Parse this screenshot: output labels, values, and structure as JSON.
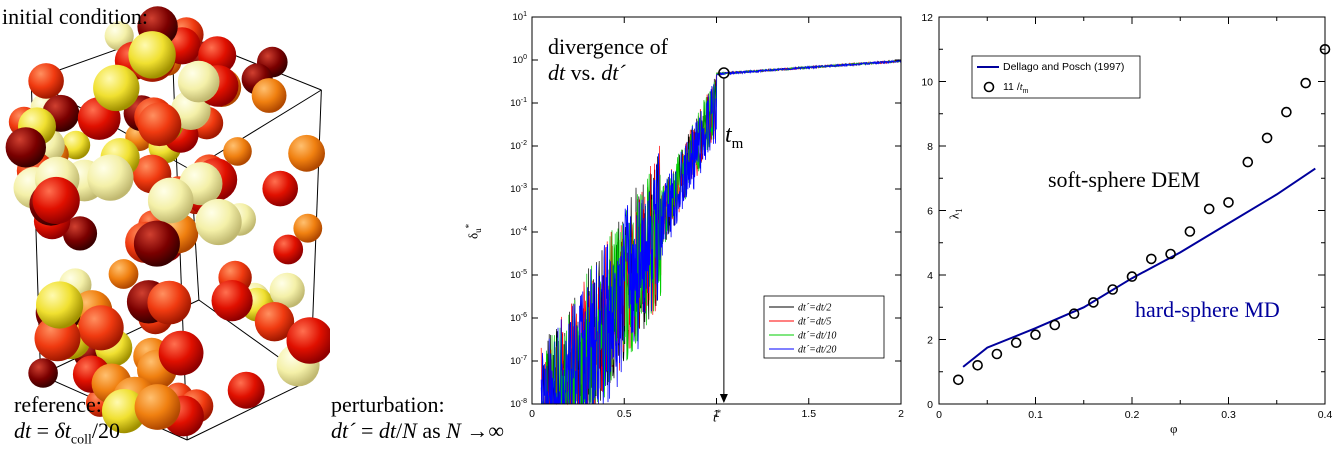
{
  "left_panel": {
    "caption_top": "initial condition:",
    "reference_line1": "reference:",
    "reference_dt": "dt",
    "reference_eq": " = ",
    "reference_delta": "δt",
    "reference_sub": "coll",
    "reference_tail": "/20",
    "perturb_line1": "perturbation:",
    "perturb_dt": "dt´",
    "perturb_eq": " = ",
    "perturb_dt2": "dt",
    "perturb_slash": "/",
    "perturb_N": "N",
    "perturb_as": " as ",
    "perturb_N2": "N",
    "perturb_arrow": " →∞",
    "colors": [
      "#c80000",
      "#e03000",
      "#7a0000",
      "#f07a10",
      "#f2e040",
      "#f4f0a0",
      "#ff3010"
    ]
  },
  "chart_data": [
    {
      "type": "line",
      "yscale": "log",
      "xlim": [
        0,
        2
      ],
      "ylim": [
        1e-08,
        10
      ],
      "x_ticks": [
        "0",
        "0.5",
        "1",
        "1.5",
        "2"
      ],
      "x_tick_values": [
        0,
        0.5,
        1,
        1.5,
        2
      ],
      "y_tick_exponents": [
        -8,
        -7,
        -6,
        -5,
        -4,
        -3,
        -2,
        -1,
        0,
        1
      ],
      "y_tick_base": "10",
      "xlabel": "t",
      "xlabel_sup": "*",
      "ylabel": "δ",
      "ylabel_sub": "u",
      "ylabel_sup": "*",
      "annotation_title_1": "divergence of",
      "annotation_title_2a": "dt",
      "annotation_title_2b": " vs. ",
      "annotation_title_2c": "dt´",
      "annotation_tm": "t",
      "annotation_tm_sub": "m",
      "marker_point": {
        "x": 1.04,
        "y": 0.5
      },
      "legend": [
        {
          "label": "dt´=dt/2",
          "color": "#000000"
        },
        {
          "label": "dt´=dt/5",
          "color": "#ff0000"
        },
        {
          "label": "dt´=dt/10",
          "color": "#00cc00"
        },
        {
          "label": "dt´=dt/20",
          "color": "#0000ff"
        }
      ],
      "legend_position": "bottom-right"
    },
    {
      "type": "line+scatter",
      "xlim": [
        0,
        0.4
      ],
      "ylim": [
        0,
        12
      ],
      "x_ticks": [
        "0",
        "0.1",
        "0.2",
        "0.3",
        "0.4"
      ],
      "x_tick_values": [
        0,
        0.1,
        0.2,
        0.3,
        0.4
      ],
      "y_ticks": [
        "0",
        "2",
        "4",
        "6",
        "8",
        "10",
        "12"
      ],
      "y_tick_values": [
        0,
        2,
        4,
        6,
        8,
        10,
        12
      ],
      "xlabel": "φ",
      "ylabel": "λ",
      "ylabel_sub": "1",
      "legend": [
        {
          "label": "Dellago and Posch (1997)",
          "kind": "line",
          "color": "#00009c"
        },
        {
          "label": "11 /",
          "label_it": "t",
          "label_sub": "m",
          "kind": "circle",
          "color": "#000000"
        }
      ],
      "legend_position": "top-left",
      "annotation_soft": "soft-sphere DEM",
      "annotation_hard": "hard-sphere MD",
      "hard_color": "#00009c",
      "series": [
        {
          "name": "Dellago and Posch (1997)",
          "x": [
            0.025,
            0.05,
            0.1,
            0.15,
            0.2,
            0.25,
            0.3,
            0.35,
            0.39
          ],
          "y": [
            1.15,
            1.75,
            2.35,
            3.0,
            3.9,
            4.7,
            5.6,
            6.5,
            7.3
          ]
        },
        {
          "name": "11 /tm",
          "x": [
            0.02,
            0.04,
            0.06,
            0.08,
            0.1,
            0.12,
            0.14,
            0.16,
            0.18,
            0.2,
            0.22,
            0.24,
            0.26,
            0.28,
            0.3,
            0.32,
            0.34,
            0.36,
            0.38,
            0.4
          ],
          "y": [
            0.75,
            1.2,
            1.55,
            1.9,
            2.15,
            2.45,
            2.8,
            3.15,
            3.55,
            3.95,
            4.5,
            4.65,
            5.35,
            6.05,
            6.25,
            7.5,
            8.25,
            9.05,
            9.95,
            11.0
          ]
        }
      ]
    }
  ]
}
